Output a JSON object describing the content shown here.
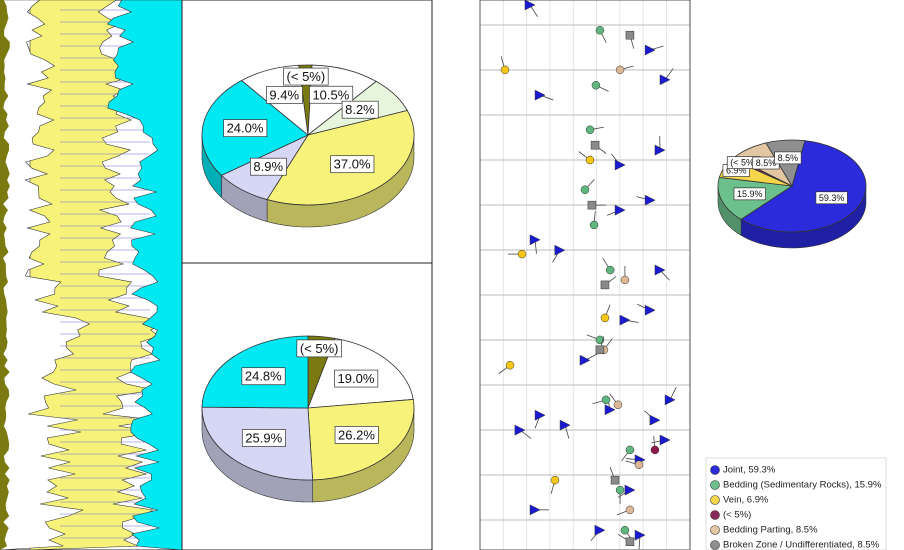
{
  "chart_data": [
    {
      "type": "pie",
      "startangle": -95,
      "categories": [
        null,
        null,
        null,
        null,
        null,
        null,
        null
      ],
      "values": [
        2.0,
        10.5,
        8.2,
        37.0,
        8.9,
        24.0,
        9.4
      ],
      "value_labels": [
        "(< 5%)",
        "10.5%",
        "8.2%",
        "37.0%",
        "8.9%",
        "24.0%",
        "9.4%"
      ],
      "colors": [
        "#7a7a10",
        "#ffffff",
        "#e6f5dc",
        "#f7f27a",
        "#d6d6f5",
        "#00e8f2",
        "#ffffff"
      ]
    },
    {
      "type": "pie",
      "startangle": -90,
      "categories": [
        null,
        null,
        null,
        null,
        null
      ],
      "values": [
        4.1,
        19.0,
        26.2,
        25.9,
        24.8
      ],
      "value_labels": [
        "(< 5%)",
        "19.0%",
        "26.2%",
        "25.9%",
        "24.8%"
      ],
      "colors": [
        "#7a7a10",
        "#ffffff",
        "#f7f27a",
        "#d6d6f5",
        "#00e8f2"
      ]
    },
    {
      "type": "pie",
      "startangle": -80,
      "categories": [
        "Joint, 59.3%",
        "Bedding (Sedimentary Rocks), 15.9%",
        "Vein, 6.9%",
        "(< 5%)",
        "Bedding Parting, 8.5%",
        "Broken Zone / Undifferentiated, 8.5%"
      ],
      "values": [
        59.3,
        15.9,
        6.9,
        0.9,
        8.5,
        8.5
      ],
      "value_labels": [
        "59.3%",
        "15.9%",
        "6.9%",
        "(< 5%)",
        "8.5%",
        "8.5%"
      ],
      "colors": [
        "#2b2bdb",
        "#6cc08c",
        "#f5d64a",
        "#8b2a5a",
        "#e3c6a2",
        "#8f8f8f"
      ],
      "legend": "lower right"
    },
    {
      "type": "scatter",
      "xlim": [
        0,
        100
      ],
      "ylim": [
        100,
        0
      ],
      "series": [
        {
          "color": "#1a1ad0",
          "marker": "triangle",
          "x": [
            26.2,
            19,
            40.5,
            28.6,
            71.4,
            76.2,
            83.3,
            61.9,
            90.5,
            50,
            69,
            85.7,
            26.2,
            38,
            66.7,
            81,
            66.7,
            85.7,
            88.1,
            81,
            28.6,
            23.8,
            76.2,
            57.1,
            88.1,
            81
          ],
          "y": [
            7.3,
            21.8,
            22.7,
            24.5,
            10.9,
            16.4,
            23.6,
            25.5,
            27.3,
            34.5,
            41.8,
            50.9,
            56.4,
            54.5,
            61.8,
            63.6,
            70,
            72.7,
            85.5,
            90.9,
            82.7,
            99.1,
            2.7,
            3.6,
            20,
            43.6
          ]
        },
        {
          "color": "#5fb67f",
          "marker": "circle",
          "x": [
            69,
            66.7,
            71.4,
            60,
            57.1,
            62,
            54.3,
            50,
            52.4,
            55.2,
            57.1
          ],
          "y": [
            3.6,
            10.9,
            18.2,
            27.3,
            38.2,
            50.9,
            59.1,
            65.5,
            76.4,
            84.5,
            94.5
          ]
        },
        {
          "color": "#f5c518",
          "marker": "circle",
          "x": [
            35.7,
            14.3,
            20,
            52.4,
            11.9,
            59.5
          ],
          "y": [
            12.7,
            33.6,
            53.8,
            70.9,
            87.3,
            42.2
          ]
        },
        {
          "color": "#dcb896",
          "marker": "circle",
          "x": [
            71.4,
            75.7,
            65.7,
            69,
            59,
            66.7
          ],
          "y": [
            7.3,
            15.5,
            26.4,
            49.1,
            36.4,
            87.3
          ]
        },
        {
          "color": "#8a8a8a",
          "marker": "square",
          "x": [
            71.4,
            64.3,
            57.1,
            59.5,
            53.3,
            54.8,
            71.4
          ],
          "y": [
            1.5,
            12.7,
            36.4,
            48.2,
            62.7,
            73.6,
            93.6
          ]
        },
        {
          "color": "#8b1a4a",
          "marker": "circle",
          "x": [
            83.3
          ],
          "y": [
            18.2
          ]
        }
      ]
    }
  ]
}
